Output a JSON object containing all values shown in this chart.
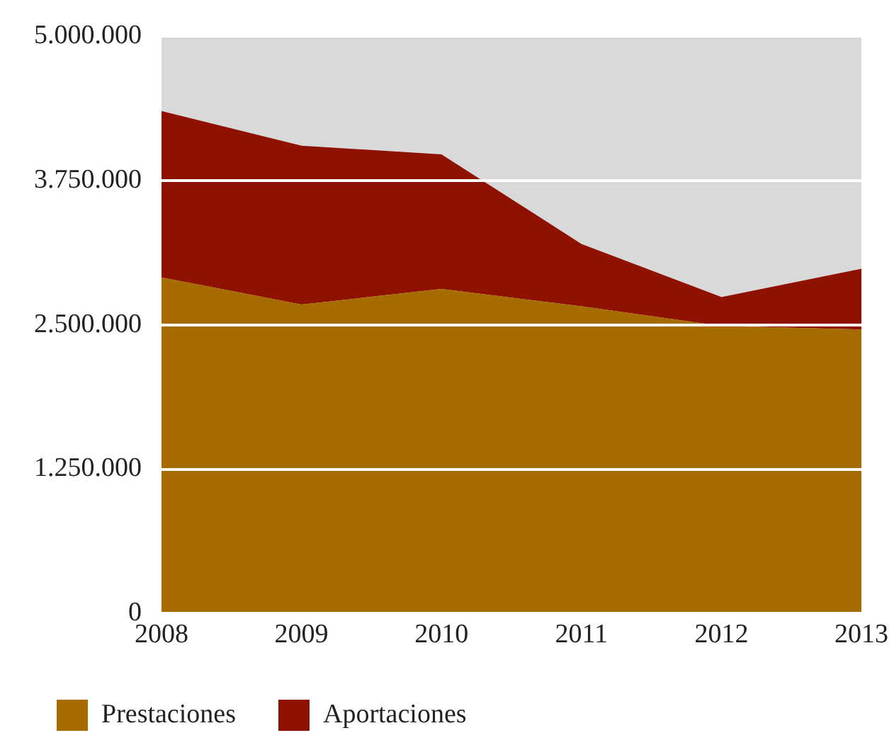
{
  "chart_data": {
    "type": "area",
    "stacked": true,
    "categories": [
      "2008",
      "2009",
      "2010",
      "2011",
      "2012",
      "2013"
    ],
    "series": [
      {
        "name": "Prestaciones",
        "color": "#a86b00",
        "values": [
          2910000,
          2675000,
          2810000,
          2660000,
          2490000,
          2460000
        ]
      },
      {
        "name": "Aportaciones",
        "color": "#8f1200",
        "values": [
          1440000,
          1375000,
          1165000,
          540000,
          250000,
          525000
        ]
      }
    ],
    "ylim": [
      0,
      5000000
    ],
    "yticks": [
      {
        "value": 0,
        "label": "0"
      },
      {
        "value": 1250000,
        "label": "1.250.000"
      },
      {
        "value": 2500000,
        "label": "2.500.000"
      },
      {
        "value": 3750000,
        "label": "3.750.000"
      },
      {
        "value": 5000000,
        "label": "5.000.000"
      }
    ],
    "grid": "y",
    "legend": "bottom"
  }
}
